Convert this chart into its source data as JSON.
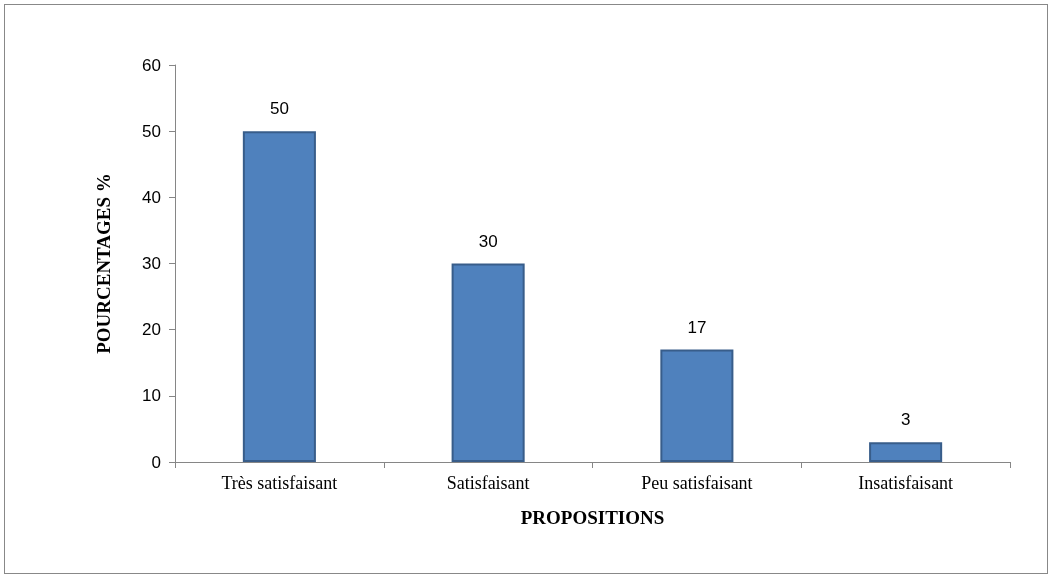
{
  "chart_data": {
    "type": "bar",
    "xlabel": "PROPOSITIONS",
    "ylabel": "POURCENTAGES %",
    "categories": [
      "Très satisfaisant",
      "Satisfaisant",
      "Peu satisfaisant",
      "Insatisfaisant"
    ],
    "values": [
      50,
      30,
      17,
      3
    ],
    "color": "#4f81bd",
    "ylim": [
      0,
      60
    ],
    "yticks": [
      0,
      10,
      20,
      30,
      40,
      50,
      60
    ],
    "grid": false,
    "data_labels": true
  }
}
